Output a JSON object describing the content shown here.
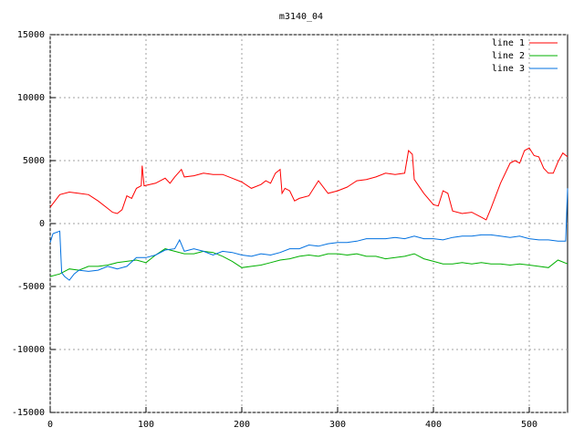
{
  "chart_data": {
    "type": "line",
    "title": "m3140_04",
    "xlim": [
      0,
      540
    ],
    "xticks": [
      0,
      100,
      200,
      300,
      400,
      500
    ],
    "ylim": [
      -15000,
      15000
    ],
    "yticks": [
      -15000,
      -10000,
      -5000,
      0,
      5000,
      10000,
      15000
    ],
    "grid": true,
    "legend": "top-right",
    "series": [
      {
        "name": "line 1",
        "color": "#ff0000",
        "x": [
          0,
          5,
          10,
          20,
          30,
          40,
          50,
          60,
          65,
          70,
          75,
          80,
          85,
          90,
          95,
          96,
          98,
          110,
          120,
          125,
          130,
          137,
          140,
          150,
          160,
          170,
          180,
          190,
          200,
          210,
          220,
          225,
          230,
          235,
          240,
          242,
          245,
          250,
          255,
          260,
          270,
          280,
          290,
          300,
          310,
          320,
          330,
          340,
          350,
          360,
          370,
          374,
          378,
          380,
          390,
          400,
          405,
          410,
          415,
          420,
          430,
          440,
          450,
          455,
          460,
          470,
          480,
          485,
          490,
          495,
          500,
          505,
          510,
          515,
          520,
          525,
          530,
          535,
          540
        ],
        "values": [
          1300,
          1800,
          2300,
          2500,
          2400,
          2300,
          1800,
          1200,
          900,
          800,
          1100,
          2200,
          2000,
          2800,
          3000,
          4600,
          3000,
          3200,
          3600,
          3200,
          3700,
          4300,
          3700,
          3800,
          4000,
          3900,
          3900,
          3600,
          3300,
          2800,
          3100,
          3400,
          3200,
          4000,
          4300,
          2400,
          2800,
          2600,
          1800,
          2000,
          2200,
          3400,
          2400,
          2600,
          2900,
          3400,
          3500,
          3700,
          4000,
          3900,
          4000,
          5800,
          5500,
          3500,
          2400,
          1500,
          1400,
          2600,
          2400,
          1000,
          800,
          900,
          500,
          300,
          1200,
          3200,
          4800,
          5000,
          4800,
          5800,
          6000,
          5400,
          5300,
          4400,
          4000,
          4000,
          4900,
          5600,
          5300
        ]
      },
      {
        "name": "line 2",
        "color": "#00b000",
        "x": [
          0,
          10,
          20,
          30,
          40,
          50,
          60,
          70,
          80,
          90,
          100,
          110,
          120,
          130,
          140,
          150,
          160,
          170,
          180,
          190,
          200,
          210,
          220,
          230,
          240,
          250,
          260,
          270,
          280,
          290,
          300,
          310,
          320,
          330,
          340,
          350,
          360,
          370,
          380,
          390,
          400,
          410,
          420,
          430,
          440,
          450,
          460,
          470,
          480,
          490,
          500,
          510,
          520,
          530,
          540
        ],
        "values": [
          -4200,
          -4000,
          -3600,
          -3700,
          -3400,
          -3400,
          -3300,
          -3100,
          -3000,
          -2900,
          -3100,
          -2500,
          -2000,
          -2200,
          -2400,
          -2400,
          -2200,
          -2300,
          -2600,
          -3000,
          -3500,
          -3400,
          -3300,
          -3100,
          -2900,
          -2800,
          -2600,
          -2500,
          -2600,
          -2400,
          -2400,
          -2500,
          -2400,
          -2600,
          -2600,
          -2800,
          -2700,
          -2600,
          -2400,
          -2800,
          -3000,
          -3200,
          -3200,
          -3100,
          -3200,
          -3100,
          -3200,
          -3200,
          -3300,
          -3200,
          -3300,
          -3400,
          -3500,
          -2900,
          -3200
        ]
      },
      {
        "name": "line 3",
        "color": "#0070e0",
        "x": [
          0,
          3,
          10,
          12,
          15,
          20,
          25,
          30,
          40,
          50,
          60,
          70,
          80,
          90,
          100,
          110,
          120,
          130,
          135,
          140,
          150,
          160,
          170,
          180,
          190,
          200,
          210,
          220,
          230,
          240,
          250,
          260,
          270,
          280,
          290,
          300,
          310,
          320,
          330,
          340,
          350,
          360,
          370,
          380,
          390,
          400,
          410,
          420,
          430,
          440,
          450,
          460,
          470,
          480,
          490,
          500,
          510,
          520,
          530,
          538,
          540
        ],
        "values": [
          -1500,
          -800,
          -600,
          -3900,
          -4200,
          -4500,
          -4000,
          -3700,
          -3800,
          -3700,
          -3400,
          -3600,
          -3400,
          -2700,
          -2700,
          -2500,
          -2100,
          -2000,
          -1300,
          -2200,
          -2000,
          -2200,
          -2500,
          -2200,
          -2300,
          -2500,
          -2600,
          -2400,
          -2500,
          -2300,
          -2000,
          -2000,
          -1700,
          -1800,
          -1600,
          -1500,
          -1500,
          -1400,
          -1200,
          -1200,
          -1200,
          -1100,
          -1200,
          -1000,
          -1200,
          -1200,
          -1300,
          -1100,
          -1000,
          -1000,
          -900,
          -900,
          -1000,
          -1100,
          -1000,
          -1200,
          -1300,
          -1300,
          -1400,
          -1400,
          2800
        ]
      }
    ]
  }
}
